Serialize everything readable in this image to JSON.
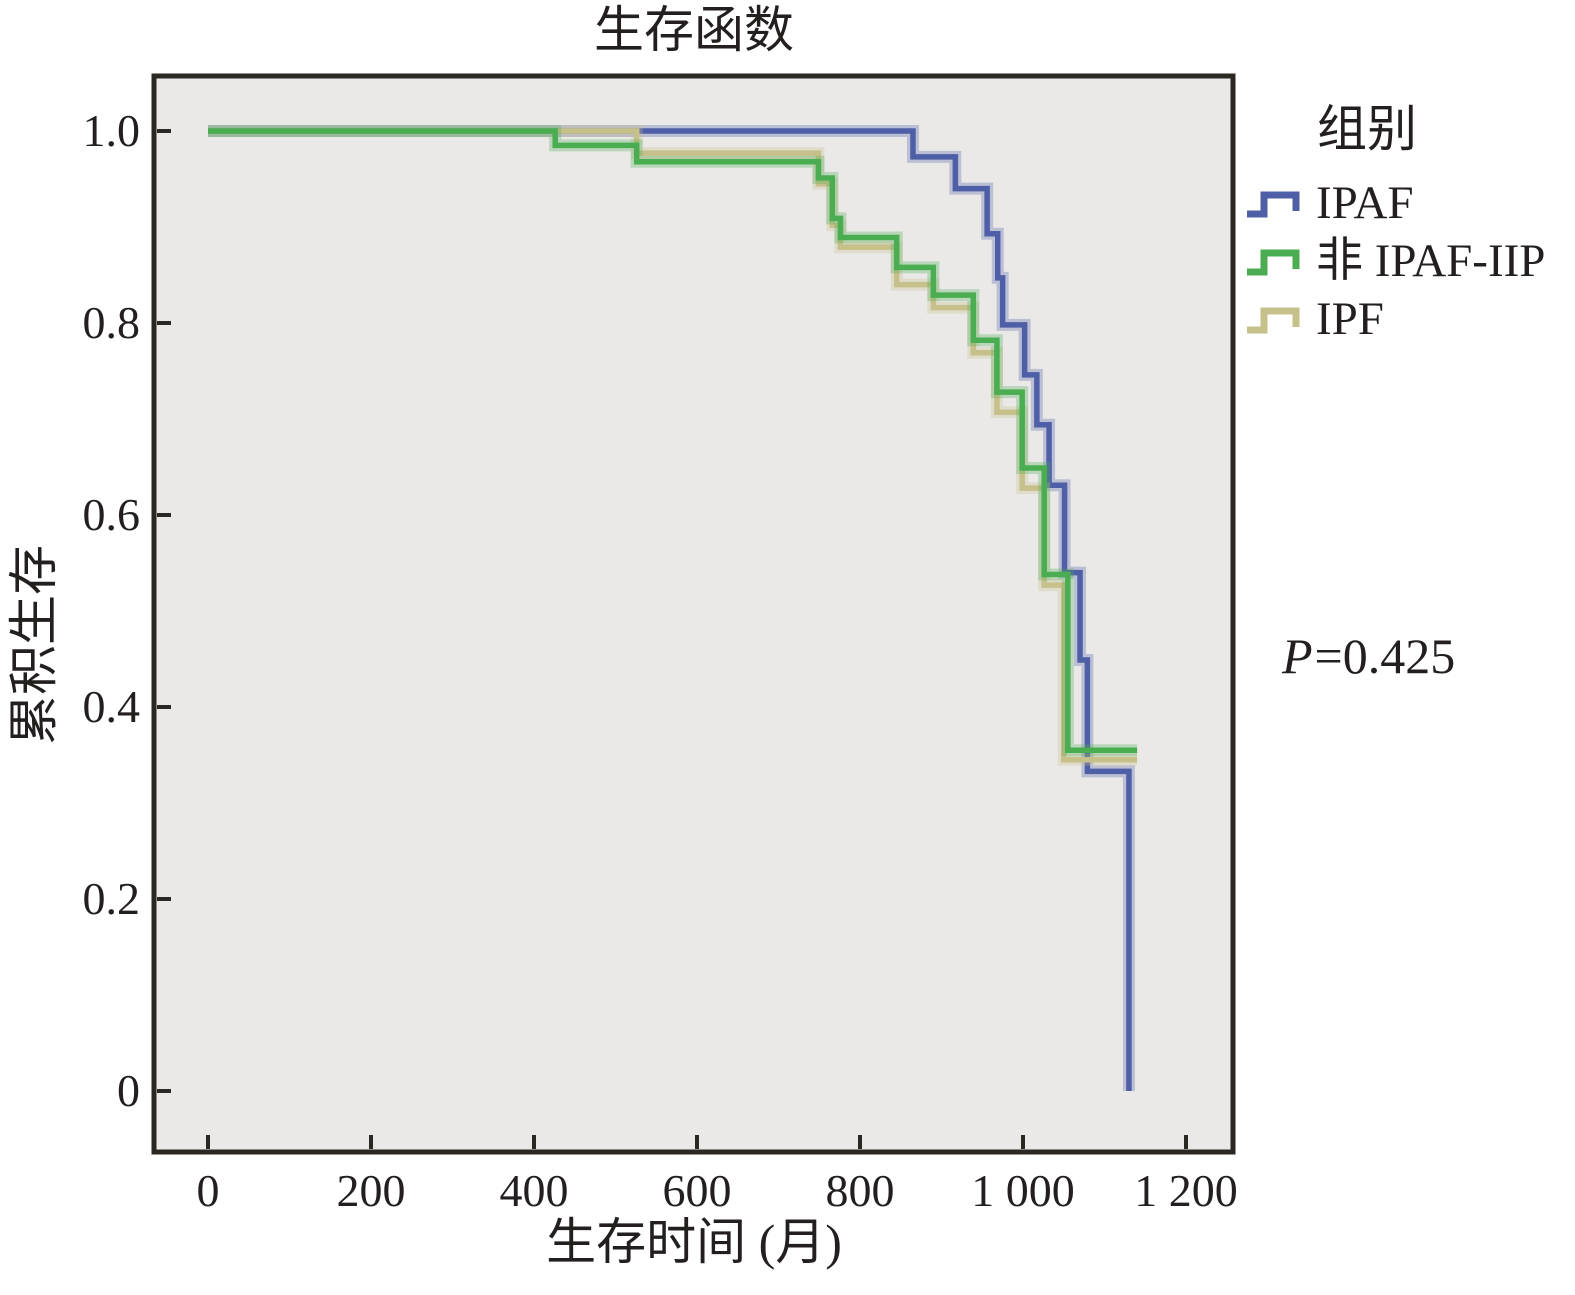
{
  "title": "生存函数",
  "y_axis_title": "累积生存",
  "x_axis_title": "生存时间 (月)",
  "p_annotation": {
    "italic": "P",
    "rest": "=0.425"
  },
  "legend": {
    "title": "组别",
    "items": [
      {
        "label": "IPAF",
        "color": "#4f5fa7"
      },
      {
        "label": "非 IPAF-IIP",
        "color": "#4bad52"
      },
      {
        "label": "IPF",
        "color": "#c6c08a"
      }
    ]
  },
  "chart_data": {
    "type": "line",
    "subtype": "kaplan-meier-step",
    "title": "生存函数",
    "xlabel": "生存时间 (月)",
    "ylabel": "累积生存",
    "annotation": "P=0.425",
    "legend_position": "right",
    "grid": false,
    "plot_bg": "#eae9e7",
    "frame_color": "#2b2723",
    "xlim": [
      0,
      1260
    ],
    "ylim": [
      0,
      1.0
    ],
    "x_ticks": [
      {
        "value": 0,
        "label": "0"
      },
      {
        "value": 200,
        "label": "200"
      },
      {
        "value": 400,
        "label": "400"
      },
      {
        "value": 600,
        "label": "600"
      },
      {
        "value": 800,
        "label": "800"
      },
      {
        "value": 1000,
        "label": "1 000"
      },
      {
        "value": 1200,
        "label": "1 200"
      }
    ],
    "y_ticks": [
      {
        "value": 1.0,
        "label": "1.0"
      },
      {
        "value": 0.8,
        "label": "0.8"
      },
      {
        "value": 0.6,
        "label": "0.6"
      },
      {
        "value": 0.4,
        "label": "0.4"
      },
      {
        "value": 0.2,
        "label": "0.2"
      },
      {
        "value": 0.0,
        "label": "0"
      }
    ],
    "draw_order": [
      "IPAF",
      "IPF",
      "非 IPAF-IIP"
    ],
    "series": [
      {
        "name": "IPAF",
        "color": "#4f5fa7",
        "end_x": null,
        "steps": [
          [
            0,
            1.0
          ],
          [
            865,
            0.973
          ],
          [
            917,
            0.94
          ],
          [
            956,
            0.893
          ],
          [
            969,
            0.847
          ],
          [
            975,
            0.798
          ],
          [
            1002,
            0.746
          ],
          [
            1017,
            0.694
          ],
          [
            1032,
            0.631
          ],
          [
            1051,
            0.54
          ],
          [
            1070,
            0.449
          ],
          [
            1079,
            0.333
          ],
          [
            1130,
            0.0
          ]
        ]
      },
      {
        "name": "非 IPAF-IIP",
        "color": "#4bad52",
        "end_x": 1140,
        "steps": [
          [
            0,
            1.0
          ],
          [
            426,
            0.985
          ],
          [
            526,
            0.968
          ],
          [
            749,
            0.951
          ],
          [
            766,
            0.909
          ],
          [
            776,
            0.889
          ],
          [
            845,
            0.858
          ],
          [
            890,
            0.829
          ],
          [
            939,
            0.782
          ],
          [
            968,
            0.728
          ],
          [
            999,
            0.649
          ],
          [
            1026,
            0.538
          ],
          [
            1055,
            0.355
          ]
        ]
      },
      {
        "name": "IPF",
        "color": "#c6c08a",
        "end_x": 1140,
        "steps": [
          [
            0,
            1.0
          ],
          [
            526,
            0.977
          ],
          [
            749,
            0.945
          ],
          [
            766,
            0.902
          ],
          [
            776,
            0.879
          ],
          [
            845,
            0.84
          ],
          [
            890,
            0.816
          ],
          [
            939,
            0.769
          ],
          [
            968,
            0.707
          ],
          [
            999,
            0.628
          ],
          [
            1026,
            0.527
          ],
          [
            1050,
            0.345
          ]
        ]
      }
    ]
  }
}
